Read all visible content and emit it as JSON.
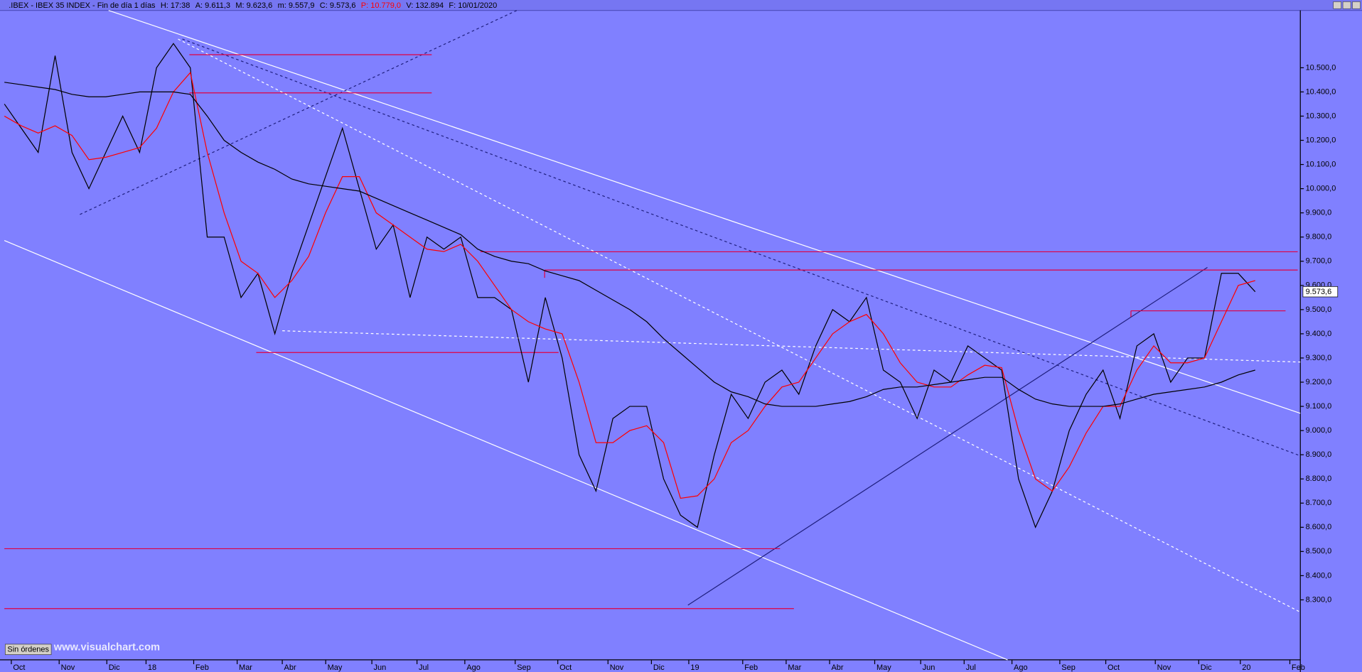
{
  "chart_data": {
    "type": "line",
    "title": ".IBEX - IBEX 35 INDEX - Fin de día 1 días",
    "info": [
      "H: 17:38",
      "A: 9.611,3",
      "M: 9.623,6",
      "m: 9.557,9",
      "C: 9.573,6",
      "P: 10.779,0",
      "V: 132.894",
      "F: 10/01/2020"
    ],
    "info_highlight": 5,
    "info_highlight_color": "#ff0000",
    "last_value_label": "9.573,6",
    "status_button": "Sin órdenes",
    "watermark": "www.visualchart.com",
    "background": "#8080ff",
    "xlim": [
      -0.26,
      76.67
    ],
    "xticks": [
      {
        "value": 0.41,
        "label": "Oct"
      },
      {
        "value": 3.24,
        "label": "Nov"
      },
      {
        "value": 6.06,
        "label": "Dic"
      },
      {
        "value": 8.38,
        "label": "18"
      },
      {
        "value": 11.2,
        "label": "Feb"
      },
      {
        "value": 13.77,
        "label": "Mar"
      },
      {
        "value": 16.44,
        "label": "Abr"
      },
      {
        "value": 19.01,
        "label": "May"
      },
      {
        "value": 21.74,
        "label": "Jun"
      },
      {
        "value": 24.41,
        "label": "Jul"
      },
      {
        "value": 27.24,
        "label": "Ago"
      },
      {
        "value": 30.22,
        "label": "Sep"
      },
      {
        "value": 32.74,
        "label": "Oct"
      },
      {
        "value": 35.71,
        "label": "Nov"
      },
      {
        "value": 38.28,
        "label": "Dic"
      },
      {
        "value": 40.49,
        "label": "19"
      },
      {
        "value": 43.68,
        "label": "Feb"
      },
      {
        "value": 46.25,
        "label": "Mar"
      },
      {
        "value": 48.82,
        "label": "Abr"
      },
      {
        "value": 51.49,
        "label": "May"
      },
      {
        "value": 54.21,
        "label": "Jun"
      },
      {
        "value": 56.78,
        "label": "Jul"
      },
      {
        "value": 59.61,
        "label": "Ago"
      },
      {
        "value": 62.44,
        "label": "Sep"
      },
      {
        "value": 65.16,
        "label": "Oct"
      },
      {
        "value": 68.09,
        "label": "Nov"
      },
      {
        "value": 70.66,
        "label": "Dic"
      },
      {
        "value": 73.12,
        "label": "20"
      },
      {
        "value": 76.05,
        "label": "Feb"
      }
    ],
    "ylim": [
      8052,
      10737
    ],
    "yticks": [
      {
        "value": 8300,
        "label": "8.300,0"
      },
      {
        "value": 8400,
        "label": "8.400,0"
      },
      {
        "value": 8500,
        "label": "8.500,0"
      },
      {
        "value": 8600,
        "label": "8.600,0"
      },
      {
        "value": 8700,
        "label": "8.700,0"
      },
      {
        "value": 8800,
        "label": "8.800,0"
      },
      {
        "value": 8900,
        "label": "8.900,0"
      },
      {
        "value": 9000,
        "label": "9.000,0"
      },
      {
        "value": 9100,
        "label": "9.100,0"
      },
      {
        "value": 9200,
        "label": "9.200,0"
      },
      {
        "value": 9300,
        "label": "9.300,0"
      },
      {
        "value": 9400,
        "label": "9.400,0"
      },
      {
        "value": 9500,
        "label": "9.500,0"
      },
      {
        "value": 9600,
        "label": "9.600,0"
      },
      {
        "value": 9700,
        "label": "9.700,0"
      },
      {
        "value": 9800,
        "label": "9.800,0"
      },
      {
        "value": 9900,
        "label": "9.900,0"
      },
      {
        "value": 10000,
        "label": "10.000,0"
      },
      {
        "value": 10100,
        "label": "10.100,0"
      },
      {
        "value": 10200,
        "label": "10.200,0"
      },
      {
        "value": 10300,
        "label": "10.300,0"
      },
      {
        "value": 10400,
        "label": "10.400,0"
      },
      {
        "value": 10500,
        "label": "10.500,0"
      }
    ],
    "series": [
      {
        "color": "#000000",
        "values": [
          10350,
          10250,
          10150,
          10550,
          10150,
          10000,
          10150,
          10300,
          10150,
          10500,
          10600,
          10500,
          9800,
          9800,
          9550,
          9650,
          9400,
          9650,
          9850,
          10050,
          10250,
          10000,
          9750,
          9850,
          9550,
          9800,
          9750,
          9800,
          9550,
          9550,
          9500,
          9200,
          9550,
          9300,
          8900,
          8750,
          9050,
          9100,
          9100,
          8800,
          8650,
          8600,
          8900,
          9150,
          9050,
          9200,
          9250,
          9150,
          9350,
          9500,
          9450,
          9550,
          9250,
          9200,
          9050,
          9250,
          9200,
          9350,
          9300,
          9250,
          8800,
          8600,
          8750,
          9000,
          9150,
          9250,
          9050,
          9350,
          9400,
          9200,
          9300,
          9300,
          9650,
          9650,
          9574
        ]
      },
      {
        "color": "#ff0000",
        "values": [
          10300,
          10260,
          10230,
          10260,
          10220,
          10120,
          10130,
          10150,
          10170,
          10250,
          10400,
          10480,
          10150,
          9900,
          9700,
          9650,
          9550,
          9620,
          9720,
          9900,
          10050,
          10050,
          9900,
          9850,
          9800,
          9750,
          9740,
          9770,
          9700,
          9600,
          9500,
          9450,
          9420,
          9400,
          9200,
          8950,
          8950,
          9000,
          9020,
          8950,
          8720,
          8730,
          8800,
          8950,
          9000,
          9100,
          9180,
          9200,
          9300,
          9400,
          9450,
          9480,
          9400,
          9280,
          9200,
          9180,
          9180,
          9230,
          9270,
          9260,
          9000,
          8800,
          8750,
          8850,
          8990,
          9100,
          9100,
          9250,
          9350,
          9280,
          9280,
          9300,
          9450,
          9600,
          9620
        ]
      },
      {
        "color": "#000000",
        "values": [
          10440,
          10430,
          10420,
          10410,
          10390,
          10380,
          10380,
          10390,
          10400,
          10400,
          10400,
          10390,
          10300,
          10200,
          10150,
          10110,
          10080,
          10040,
          10020,
          10010,
          10000,
          9990,
          9960,
          9930,
          9900,
          9870,
          9840,
          9810,
          9750,
          9720,
          9700,
          9690,
          9660,
          9640,
          9620,
          9580,
          9540,
          9500,
          9450,
          9380,
          9320,
          9260,
          9200,
          9160,
          9140,
          9110,
          9100,
          9100,
          9100,
          9110,
          9120,
          9140,
          9170,
          9180,
          9180,
          9190,
          9200,
          9210,
          9220,
          9220,
          9170,
          9130,
          9110,
          9100,
          9100,
          9100,
          9110,
          9130,
          9150,
          9160,
          9170,
          9180,
          9200,
          9230,
          9250
        ]
      }
    ]
  }
}
